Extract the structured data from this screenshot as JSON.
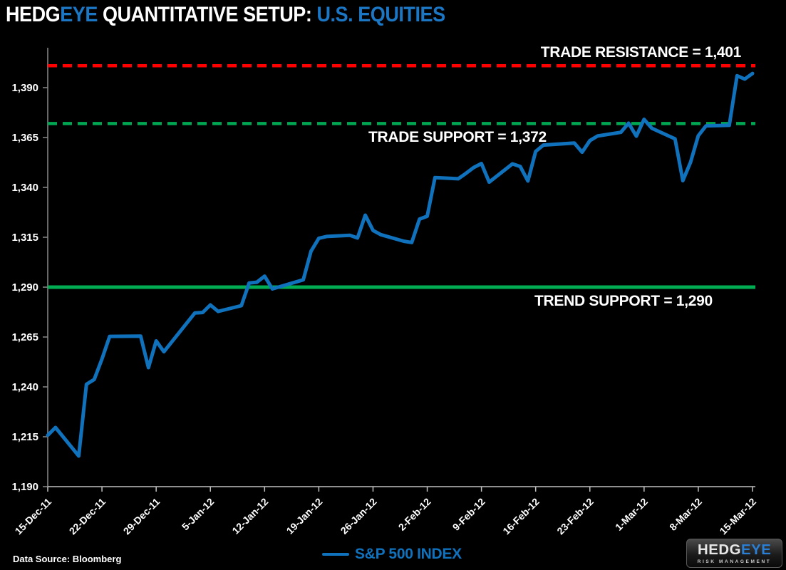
{
  "title": {
    "brand_white": "HEDG",
    "brand_blue": "EYE",
    "main": " QUANTITATIVE SETUP: ",
    "highlight": "U.S. EQUITIES"
  },
  "chart_data": {
    "type": "line",
    "title": "HEDGEYE QUANTITATIVE SETUP: U.S. EQUITIES",
    "xlabel": "",
    "ylabel": "",
    "ylim": [
      1190,
      1410
    ],
    "grid": false,
    "legend_position": "bottom-center",
    "y_ticks": [
      1190,
      1215,
      1240,
      1265,
      1290,
      1315,
      1340,
      1365,
      1390
    ],
    "x_tick_labels": [
      "15-Dec-11",
      "22-Dec-11",
      "29-Dec-11",
      "5-Jan-12",
      "12-Jan-12",
      "19-Jan-12",
      "26-Jan-12",
      "2-Feb-12",
      "9-Feb-12",
      "16-Feb-12",
      "23-Feb-12",
      "1-Mar-12",
      "8-Mar-12",
      "15-Mar-12"
    ],
    "series": [
      {
        "name": "S&P 500 INDEX",
        "color": "#1072BC",
        "points": [
          {
            "date": "15-Dec-11",
            "value": 1215.75
          },
          {
            "date": "16-Dec-11",
            "value": 1219.66
          },
          {
            "date": "19-Dec-11",
            "value": 1205.35
          },
          {
            "date": "20-Dec-11",
            "value": 1241.3
          },
          {
            "date": "21-Dec-11",
            "value": 1243.72
          },
          {
            "date": "22-Dec-11",
            "value": 1254.0
          },
          {
            "date": "23-Dec-11",
            "value": 1265.33
          },
          {
            "date": "27-Dec-11",
            "value": 1265.43
          },
          {
            "date": "28-Dec-11",
            "value": 1249.64
          },
          {
            "date": "29-Dec-11",
            "value": 1263.02
          },
          {
            "date": "30-Dec-11",
            "value": 1257.6
          },
          {
            "date": "3-Jan-12",
            "value": 1277.06
          },
          {
            "date": "4-Jan-12",
            "value": 1277.3
          },
          {
            "date": "5-Jan-12",
            "value": 1281.06
          },
          {
            "date": "6-Jan-12",
            "value": 1277.81
          },
          {
            "date": "9-Jan-12",
            "value": 1280.7
          },
          {
            "date": "10-Jan-12",
            "value": 1292.08
          },
          {
            "date": "11-Jan-12",
            "value": 1292.48
          },
          {
            "date": "12-Jan-12",
            "value": 1295.5
          },
          {
            "date": "13-Jan-12",
            "value": 1289.09
          },
          {
            "date": "17-Jan-12",
            "value": 1293.67
          },
          {
            "date": "18-Jan-12",
            "value": 1308.04
          },
          {
            "date": "19-Jan-12",
            "value": 1314.5
          },
          {
            "date": "20-Jan-12",
            "value": 1315.38
          },
          {
            "date": "23-Jan-12",
            "value": 1316.0
          },
          {
            "date": "24-Jan-12",
            "value": 1314.65
          },
          {
            "date": "25-Jan-12",
            "value": 1326.06
          },
          {
            "date": "26-Jan-12",
            "value": 1318.43
          },
          {
            "date": "27-Jan-12",
            "value": 1316.33
          },
          {
            "date": "30-Jan-12",
            "value": 1313.01
          },
          {
            "date": "31-Jan-12",
            "value": 1312.41
          },
          {
            "date": "1-Feb-12",
            "value": 1324.09
          },
          {
            "date": "2-Feb-12",
            "value": 1325.54
          },
          {
            "date": "3-Feb-12",
            "value": 1344.9
          },
          {
            "date": "6-Feb-12",
            "value": 1344.33
          },
          {
            "date": "7-Feb-12",
            "value": 1347.05
          },
          {
            "date": "8-Feb-12",
            "value": 1349.96
          },
          {
            "date": "9-Feb-12",
            "value": 1351.95
          },
          {
            "date": "10-Feb-12",
            "value": 1342.64
          },
          {
            "date": "13-Feb-12",
            "value": 1351.77
          },
          {
            "date": "14-Feb-12",
            "value": 1350.5
          },
          {
            "date": "15-Feb-12",
            "value": 1343.23
          },
          {
            "date": "16-Feb-12",
            "value": 1358.04
          },
          {
            "date": "17-Feb-12",
            "value": 1361.23
          },
          {
            "date": "21-Feb-12",
            "value": 1362.21
          },
          {
            "date": "22-Feb-12",
            "value": 1357.66
          },
          {
            "date": "23-Feb-12",
            "value": 1363.46
          },
          {
            "date": "24-Feb-12",
            "value": 1365.74
          },
          {
            "date": "27-Feb-12",
            "value": 1367.59
          },
          {
            "date": "28-Feb-12",
            "value": 1372.18
          },
          {
            "date": "29-Feb-12",
            "value": 1365.68
          },
          {
            "date": "1-Mar-12",
            "value": 1374.09
          },
          {
            "date": "2-Mar-12",
            "value": 1369.63
          },
          {
            "date": "5-Mar-12",
            "value": 1364.33
          },
          {
            "date": "6-Mar-12",
            "value": 1343.36
          },
          {
            "date": "7-Mar-12",
            "value": 1352.63
          },
          {
            "date": "8-Mar-12",
            "value": 1365.91
          },
          {
            "date": "9-Mar-12",
            "value": 1370.87
          },
          {
            "date": "12-Mar-12",
            "value": 1371.09
          },
          {
            "date": "13-Mar-12",
            "value": 1395.95
          },
          {
            "date": "14-Mar-12",
            "value": 1394.28
          },
          {
            "date": "15-Mar-12",
            "value": 1397.11
          }
        ]
      }
    ],
    "reference_lines": [
      {
        "label": "TRADE RESISTANCE = 1,401",
        "value": 1401,
        "color": "#FE0000",
        "style": "dashed"
      },
      {
        "label": "TRADE SUPPORT = 1,372",
        "value": 1372,
        "color": "#00A651",
        "style": "dashed"
      },
      {
        "label": "TREND SUPPORT = 1,290",
        "value": 1290,
        "color": "#00AD52",
        "style": "solid"
      }
    ],
    "legend": {
      "label": "S&P 500 INDEX"
    }
  },
  "footer": {
    "data_source": "Data Source: Bloomberg"
  },
  "logo": {
    "brand_white": "HEDG",
    "brand_blue": "EYE",
    "subtitle": "RISK MANAGEMENT"
  },
  "colors": {
    "background": "#000000",
    "title_blue": "#1B76C4",
    "line_blue": "#1072BC",
    "resistance_red": "#FE0000",
    "support_green": "#00A651",
    "trend_green": "#00AD52",
    "axis_gray": "#8A8A8A",
    "text_white": "#FFFFFF"
  }
}
